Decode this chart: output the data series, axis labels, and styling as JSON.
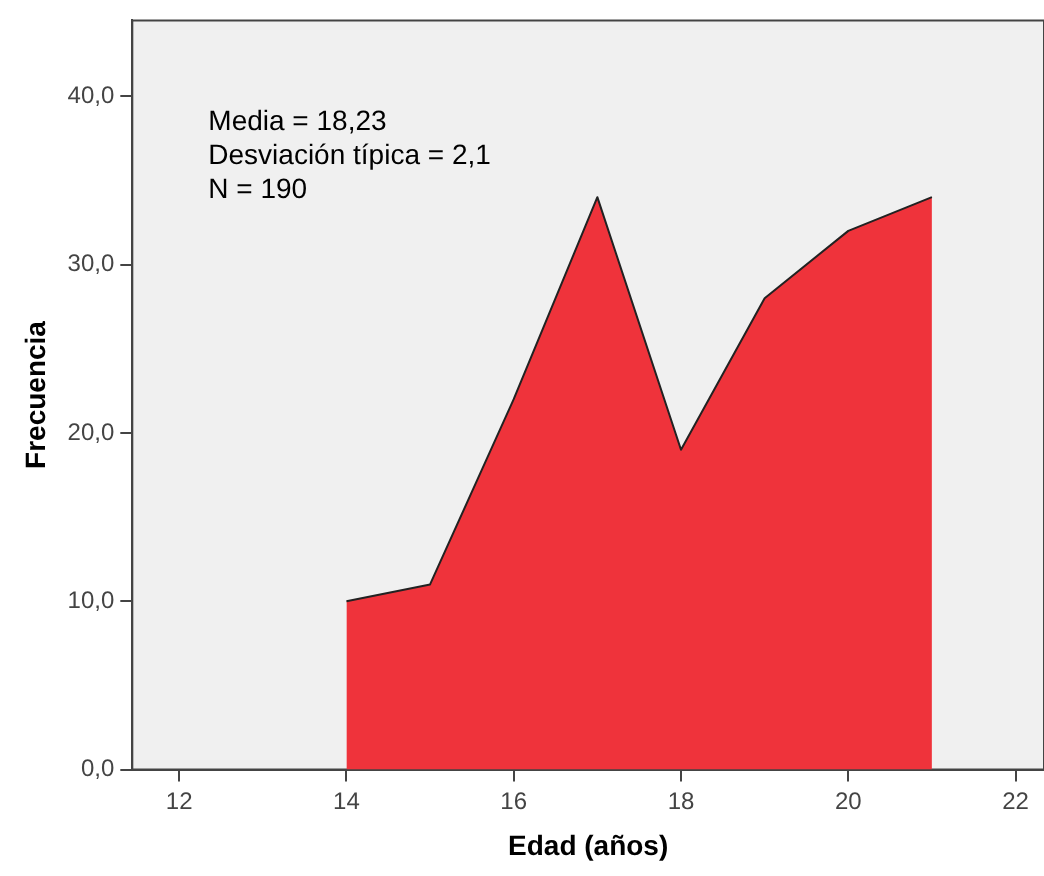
{
  "chart_data": {
    "type": "area",
    "xlabel": "Edad (años)",
    "ylabel": "Frecuencia",
    "annotations": [
      "Media = 18,23",
      "Desviación típica = 2,1",
      "N = 190"
    ],
    "x": [
      14,
      15,
      16,
      17,
      18,
      19,
      20,
      21
    ],
    "series": [
      {
        "color": "#ef333b",
        "values": [
          10,
          11,
          22,
          34,
          19,
          28,
          32,
          34
        ]
      }
    ],
    "xlim": [
      11.44,
      22.34
    ],
    "xticks": [
      12,
      14,
      16,
      18,
      20,
      22
    ],
    "ylim": [
      0,
      44.5
    ],
    "yticks": [
      {
        "value": 0,
        "label": "0,0"
      },
      {
        "value": 10,
        "label": "10,0"
      },
      {
        "value": 20,
        "label": "20,0"
      },
      {
        "value": 30,
        "label": "30,0"
      },
      {
        "value": 40,
        "label": "40,0"
      }
    ],
    "grid": false,
    "legend": false,
    "marker": "none"
  }
}
